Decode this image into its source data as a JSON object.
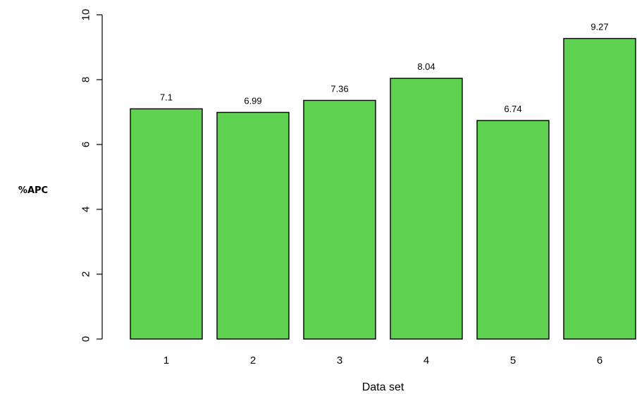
{
  "chart_data": {
    "type": "bar",
    "categories": [
      "1",
      "2",
      "3",
      "4",
      "5",
      "6"
    ],
    "values": [
      7.1,
      6.99,
      7.36,
      8.04,
      6.74,
      9.27
    ],
    "value_labels": [
      "7.1",
      "6.99",
      "7.36",
      "8.04",
      "6.74",
      "9.27"
    ],
    "xlabel": "Data set",
    "ylabel": "%APC",
    "ylim": [
      0,
      10
    ],
    "yticks": [
      0,
      2,
      4,
      6,
      8,
      10
    ],
    "ytick_labels": [
      "0",
      "2",
      "4",
      "6",
      "8",
      "10"
    ],
    "grid": false,
    "bar_color": "#5fd150",
    "bar_edge_color": "#000000"
  }
}
